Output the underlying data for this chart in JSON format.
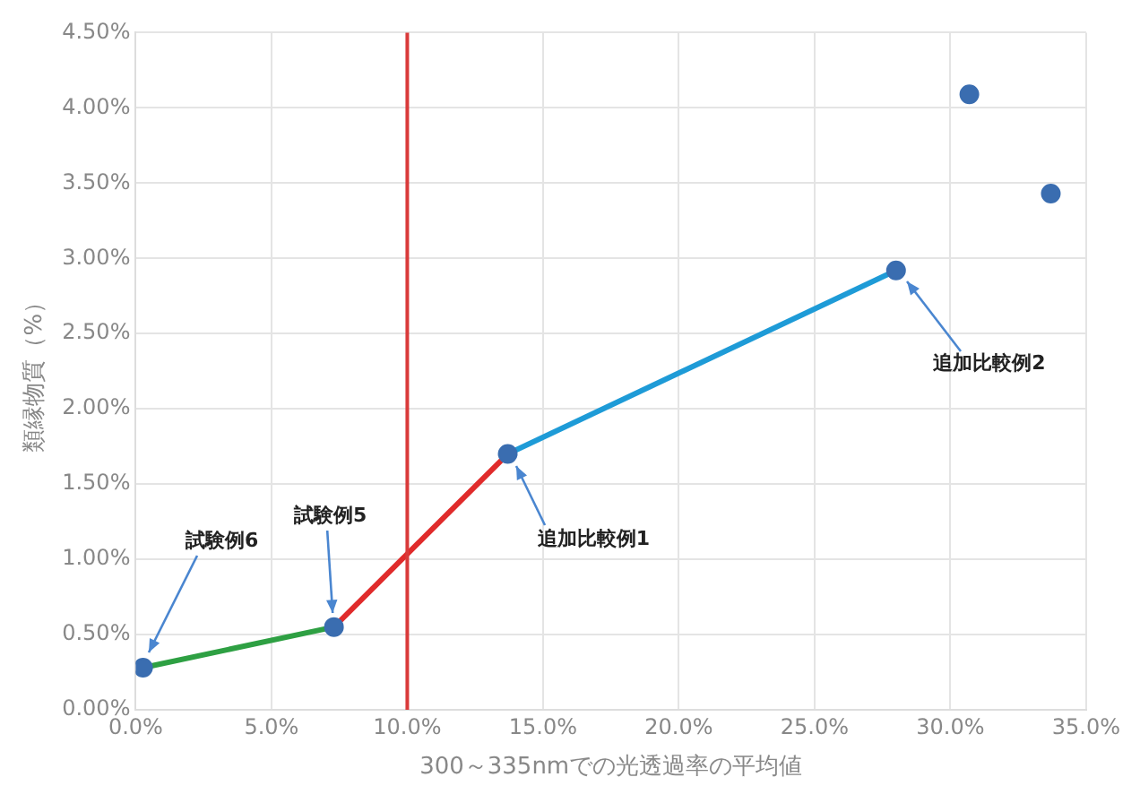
{
  "chart_data": {
    "type": "line",
    "xlabel": "300～335nmでの光透過率の平均値",
    "ylabel": "類縁物質（%）",
    "xlim": [
      0,
      35
    ],
    "xticks": [
      {
        "value": 0,
        "label": "0.0%"
      },
      {
        "value": 5,
        "label": "5.0%"
      },
      {
        "value": 10,
        "label": "10.0%"
      },
      {
        "value": 15,
        "label": "15.0%"
      },
      {
        "value": 20,
        "label": "20.0%"
      },
      {
        "value": 25,
        "label": "25.0%"
      },
      {
        "value": 30,
        "label": "30.0%"
      },
      {
        "value": 35,
        "label": "35.0%"
      }
    ],
    "ylim": [
      0,
      4.5
    ],
    "yticks": [
      {
        "value": 0,
        "label": "0.00%"
      },
      {
        "value": 0.5,
        "label": "0.50%"
      },
      {
        "value": 1,
        "label": "1.00%"
      },
      {
        "value": 1.5,
        "label": "1.50%"
      },
      {
        "value": 2,
        "label": "2.00%"
      },
      {
        "value": 2.5,
        "label": "2.50%"
      },
      {
        "value": 3,
        "label": "3.00%"
      },
      {
        "value": 3.5,
        "label": "3.50%"
      },
      {
        "value": 4,
        "label": "4.00%"
      },
      {
        "value": 4.5,
        "label": "4.50%"
      }
    ],
    "series": [
      {
        "type": "line",
        "color": "#2ea043",
        "x": [
          0.27,
          7.3
        ],
        "values": [
          0.28,
          0.55
        ],
        "marker": "none"
      },
      {
        "type": "line",
        "color": "#e02b2b",
        "x": [
          7.3,
          13.7
        ],
        "values": [
          0.55,
          1.7
        ],
        "marker": "none"
      },
      {
        "type": "line",
        "color": "#1e9bd7",
        "x": [
          13.7,
          28.0
        ],
        "values": [
          1.7,
          2.92
        ],
        "marker": "none"
      },
      {
        "type": "scatter",
        "color": "#3a6db0",
        "x": [
          0.27,
          7.3,
          13.7,
          28.0,
          30.7,
          33.7
        ],
        "values": [
          0.28,
          0.55,
          1.7,
          2.92,
          4.09,
          3.43
        ],
        "marker": "circle"
      }
    ],
    "ref_lines": [
      {
        "axis": "x",
        "value": 10,
        "color": "#d93a3a"
      }
    ],
    "annotations": [
      {
        "text": "試験例6",
        "x": 0.27,
        "y": 0.28
      },
      {
        "text": "試験例5",
        "x": 7.3,
        "y": 0.55
      },
      {
        "text": "追加比較例1",
        "x": 13.7,
        "y": 1.7
      },
      {
        "text": "追加比較例2",
        "x": 28.0,
        "y": 2.92
      }
    ],
    "grid": true,
    "legend": false
  }
}
